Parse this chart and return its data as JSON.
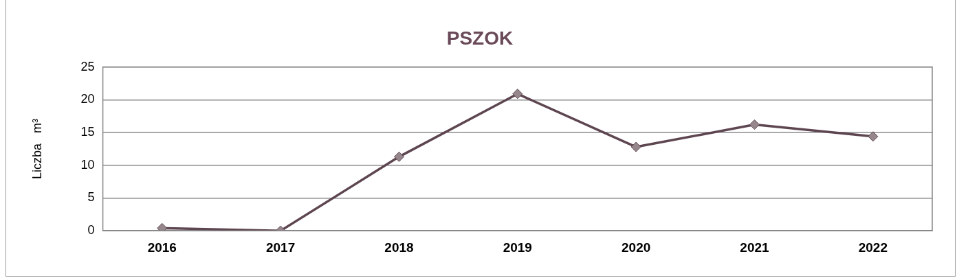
{
  "chart_data": {
    "type": "line",
    "title": "PSZOK",
    "ylabel": "Liczba   m³",
    "categories": [
      "2016",
      "2017",
      "2018",
      "2019",
      "2020",
      "2021",
      "2022"
    ],
    "series": [
      {
        "color": "#5e4650",
        "values": [
          0.4,
          0,
          11.3,
          20.9,
          12.8,
          16.2,
          14.4
        ]
      }
    ],
    "ylim": [
      0,
      25
    ],
    "yticks": [
      0,
      5,
      10,
      15,
      20,
      25
    ],
    "grid": "y",
    "legend": false,
    "marker": "diamond",
    "line_style": "solid"
  }
}
